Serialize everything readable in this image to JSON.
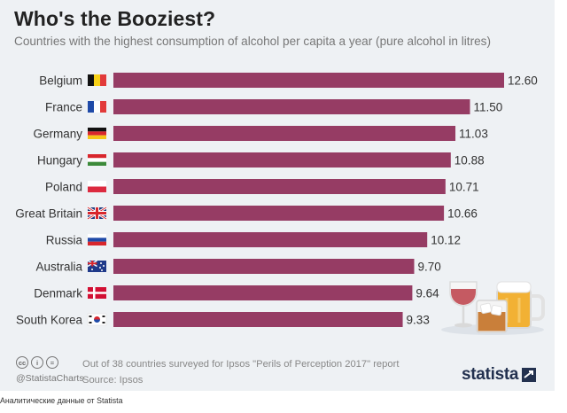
{
  "title": "Who's the Booziest?",
  "subtitle": "Countries with the highest consumption of alcohol per capita a year (pure alcohol in litres)",
  "colors": {
    "bar": "#963c64",
    "background": "#eef1f4",
    "brand": "#23314f"
  },
  "chart_data": {
    "type": "bar",
    "orientation": "horizontal",
    "categories": [
      "Belgium",
      "France",
      "Germany",
      "Hungary",
      "Poland",
      "Great Britain",
      "Russia",
      "Australia",
      "Denmark",
      "South Korea"
    ],
    "values": [
      12.6,
      11.5,
      11.03,
      10.88,
      10.71,
      10.66,
      10.12,
      9.7,
      9.64,
      9.33
    ],
    "value_labels": [
      "12.60",
      "11.50",
      "11.03",
      "10.88",
      "10.71",
      "10.66",
      "10.12",
      "9.70",
      "9.64",
      "9.33"
    ],
    "flags": [
      "flag-belgium",
      "flag-france",
      "flag-germany",
      "flag-hungary",
      "flag-poland",
      "flag-great-britain",
      "flag-russia",
      "flag-australia",
      "flag-denmark",
      "flag-south-korea"
    ],
    "xlim": [
      0,
      12.6
    ],
    "grid": false,
    "legend": "none"
  },
  "footer": {
    "license_icons": [
      "creative-commons-icon",
      "attribution-icon",
      "no-derivatives-icon"
    ],
    "license_glyphs": [
      "cc",
      "i",
      "="
    ],
    "handle": "@StatistaCharts",
    "note": "Out of 38 countries surveyed for Ipsos \"Perils of Perception 2017\" report",
    "source": "Source: Ipsos",
    "brand": "statista",
    "brand_icon": "statista-logo-icon",
    "illustration": "drinks-illustration"
  },
  "caption": "Аналитические данные от Statista"
}
